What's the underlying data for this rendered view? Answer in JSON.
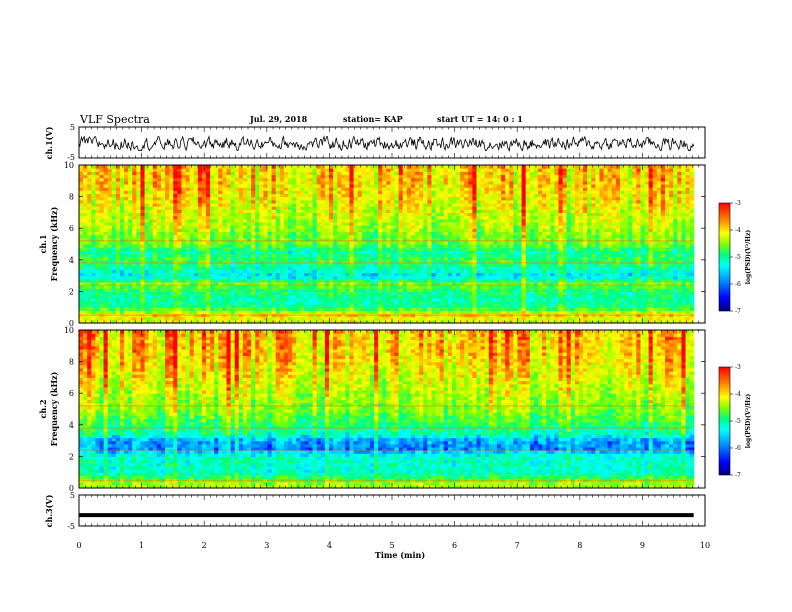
{
  "header": {
    "title": "VLF Spectra",
    "date": "Jul. 29, 2018",
    "station": "station= KAP",
    "start": "start  UT =   14: 0  : 1"
  },
  "chart_data": [
    {
      "type": "line",
      "panel": "ch1-waveform",
      "ylabel": "ch.1(V)",
      "ylim": [
        -5,
        5
      ],
      "yticks": [
        "5",
        "-5"
      ],
      "xlim": [
        0,
        10
      ],
      "x_coverage": [
        0,
        9.82
      ],
      "description_of_values": "noisy signal fluctuating between about -2 and 1.5 V"
    },
    {
      "type": "heatmap",
      "panel": "ch1-spectrogram",
      "ylabel": "ch.1\nFrequency (kHz)",
      "ylim": [
        0,
        10
      ],
      "yticks": [
        "0",
        "2",
        "4",
        "6",
        "8",
        "10"
      ],
      "xlim": [
        0,
        10
      ],
      "x_coverage": [
        0,
        9.82
      ],
      "colorbar": {
        "label": "log(PSD)(V²/Hz)",
        "range": [
          -7,
          -3
        ],
        "ticks": [
          "-3",
          "-4",
          "-5",
          "-6",
          "-7"
        ]
      },
      "frequency_profile_log_psd": [
        [
          0.2,
          -4.2
        ],
        [
          0.5,
          -3.9
        ],
        [
          1.0,
          -5.0
        ],
        [
          1.5,
          -5.2
        ],
        [
          2.0,
          -5.0
        ],
        [
          2.5,
          -4.6
        ],
        [
          3.0,
          -5.6
        ],
        [
          3.5,
          -5.2
        ],
        [
          4.0,
          -4.8
        ],
        [
          4.5,
          -5.2
        ],
        [
          5.0,
          -4.6
        ],
        [
          5.5,
          -4.6
        ],
        [
          6.0,
          -4.4
        ],
        [
          7.0,
          -4.2
        ],
        [
          8.0,
          -4.0
        ],
        [
          9.0,
          -3.9
        ],
        [
          10.0,
          -3.9
        ]
      ]
    },
    {
      "type": "heatmap",
      "panel": "ch2-spectrogram",
      "ylabel": "ch.2\nFrequency (kHz)",
      "ylim": [
        0,
        10
      ],
      "yticks": [
        "0",
        "2",
        "4",
        "6",
        "8",
        "10"
      ],
      "xlim": [
        0,
        10
      ],
      "x_coverage": [
        0,
        9.82
      ],
      "colorbar": {
        "label": "log(PSD)(V²/Hz)",
        "range": [
          -7,
          -3
        ],
        "ticks": [
          "-3",
          "-4",
          "-5",
          "-6",
          "-7"
        ]
      },
      "frequency_profile_log_psd": [
        [
          0.2,
          -4.3
        ],
        [
          0.5,
          -4.6
        ],
        [
          1.0,
          -5.3
        ],
        [
          1.5,
          -5.3
        ],
        [
          2.0,
          -5.3
        ],
        [
          2.5,
          -6.0
        ],
        [
          3.0,
          -5.9
        ],
        [
          3.5,
          -5.2
        ],
        [
          4.0,
          -4.9
        ],
        [
          4.5,
          -4.7
        ],
        [
          5.0,
          -4.5
        ],
        [
          5.5,
          -4.4
        ],
        [
          6.0,
          -4.3
        ],
        [
          7.0,
          -4.1
        ],
        [
          8.0,
          -3.9
        ],
        [
          9.0,
          -3.8
        ],
        [
          10.0,
          -3.8
        ]
      ]
    },
    {
      "type": "line",
      "panel": "ch3-waveform",
      "ylabel": "ch.3(V)",
      "ylim": [
        -5,
        5
      ],
      "yticks": [
        "5",
        "-5"
      ],
      "xlim": [
        0,
        10
      ],
      "x_coverage": [
        0,
        9.82
      ],
      "description_of_values": "nearly constant level at about -1.5 V"
    }
  ],
  "xaxis": {
    "label": "Time (min)",
    "ticks": [
      "0",
      "1",
      "2",
      "3",
      "4",
      "5",
      "6",
      "7",
      "8",
      "9",
      "10"
    ]
  },
  "colors": {
    "colormap": [
      "#000080",
      "#0000ff",
      "#0090ff",
      "#00ffff",
      "#00ff80",
      "#80ff00",
      "#ffff00",
      "#ff8000",
      "#ff0000"
    ]
  }
}
